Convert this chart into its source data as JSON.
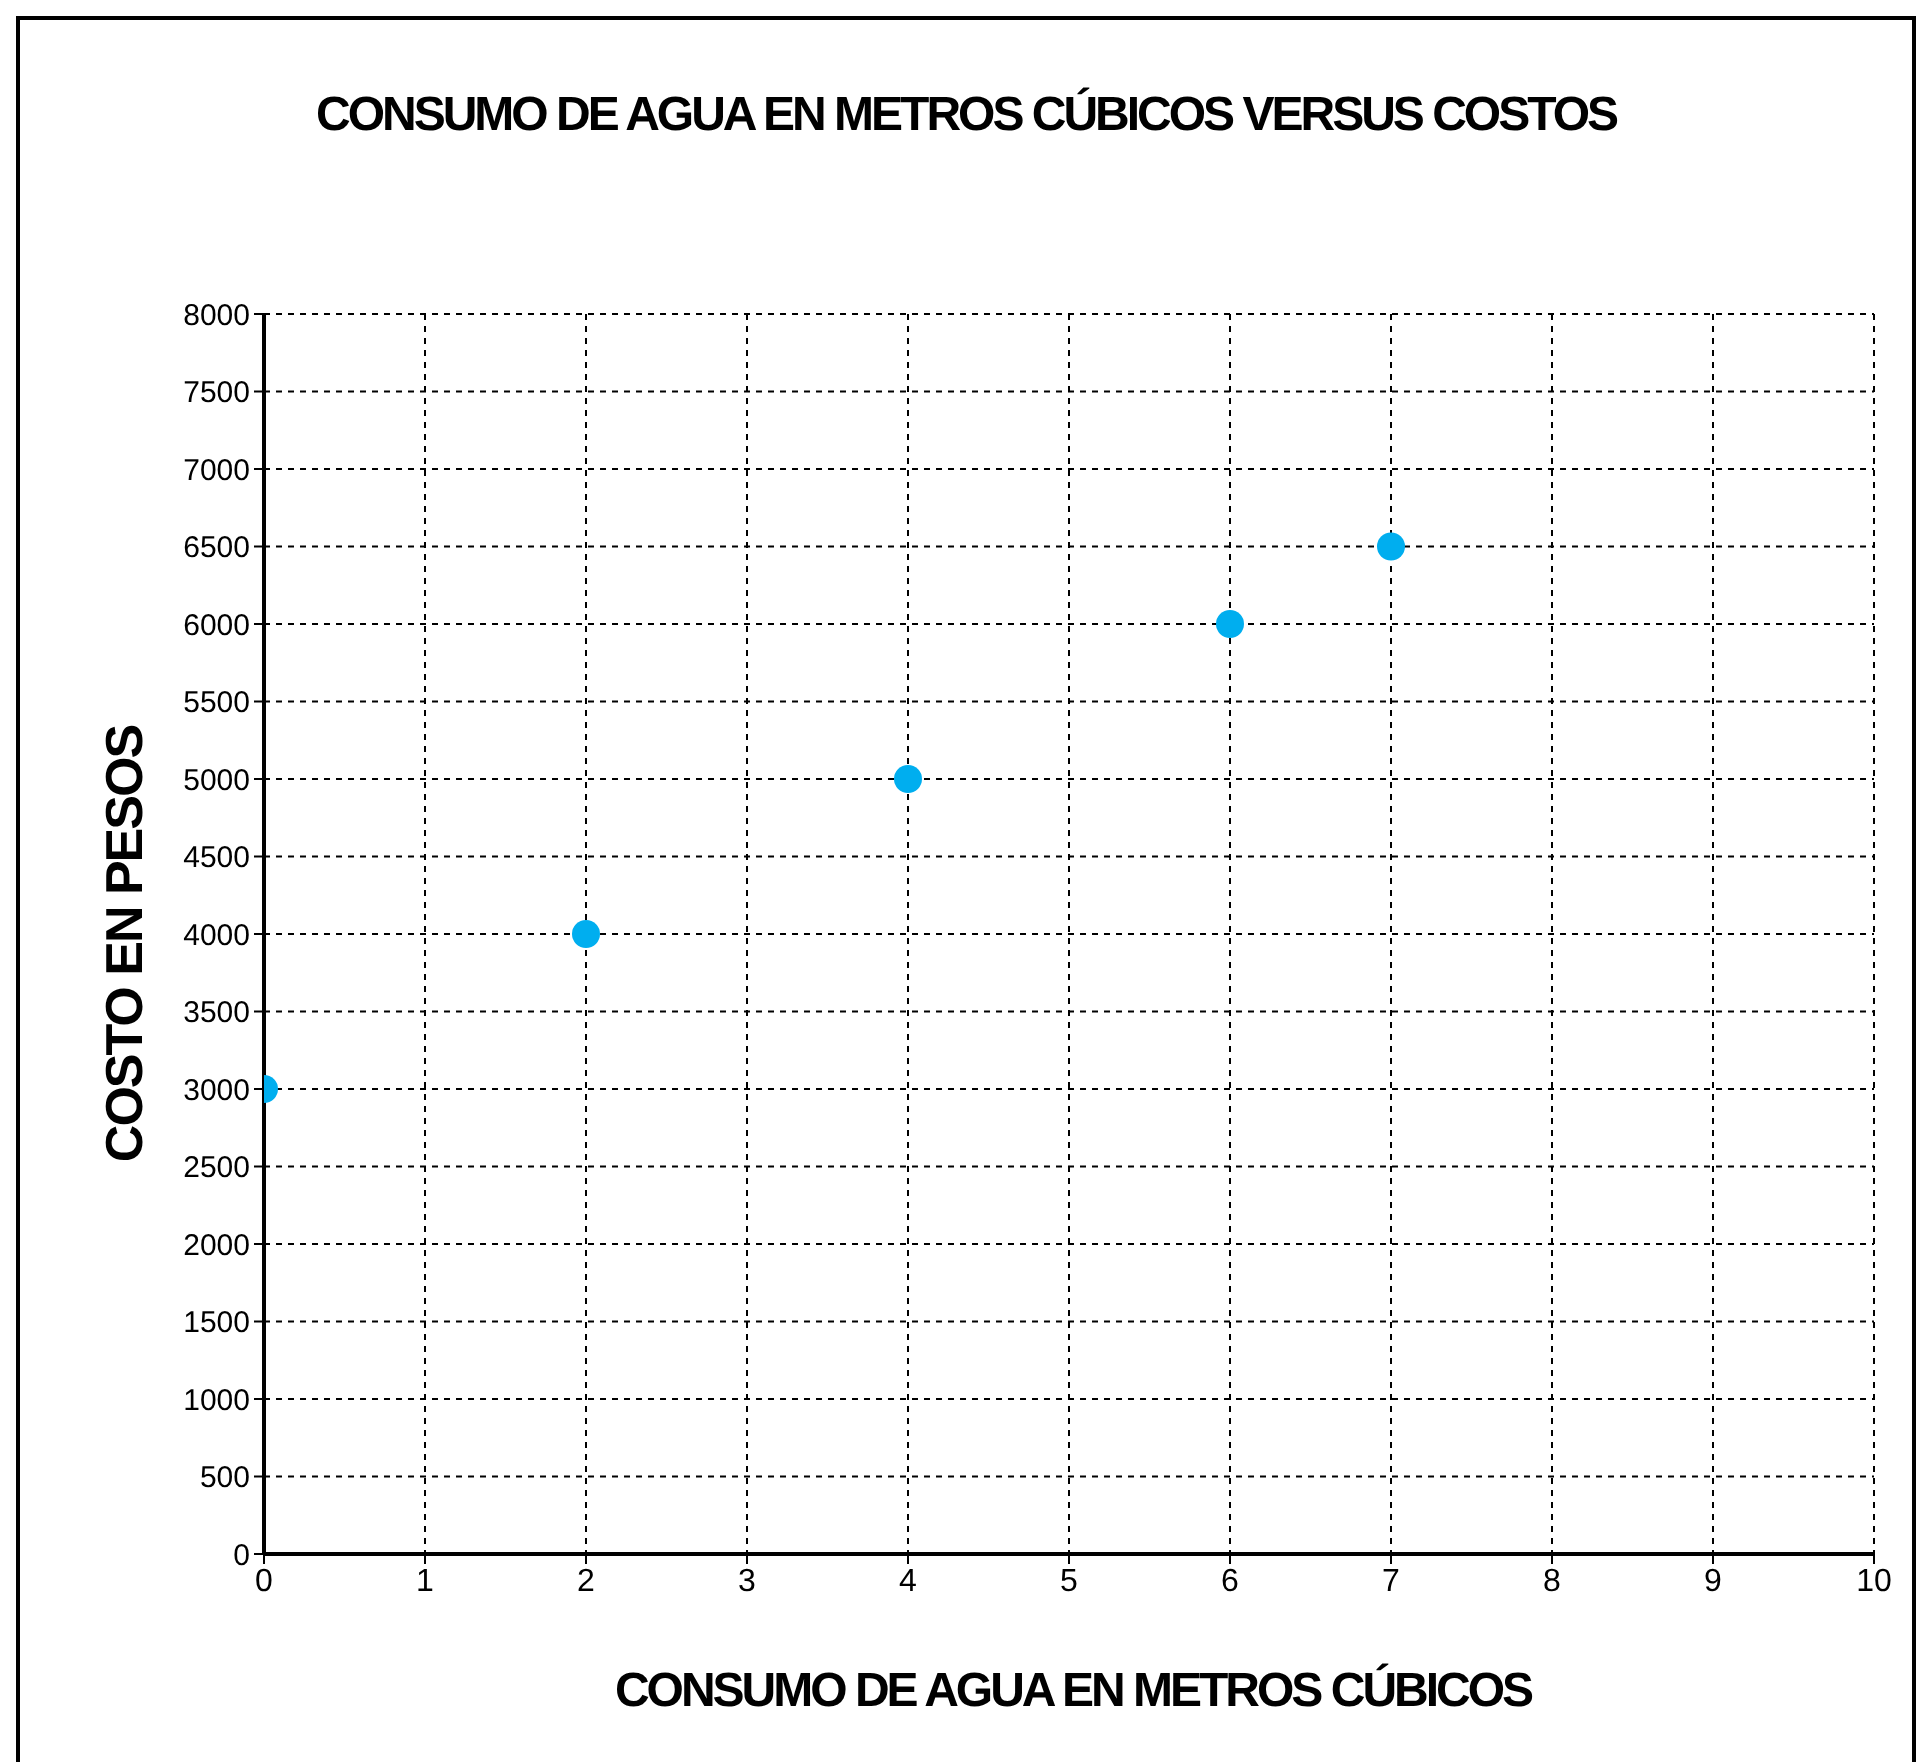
{
  "chart_data": {
    "type": "scatter",
    "title": "CONSUMO DE AGUA EN METROS CÚBICOS VERSUS COSTOS",
    "xlabel": "CONSUMO DE AGUA EN METROS CÚBICOS",
    "ylabel": "COSTO EN PESOS",
    "x": [
      0,
      2,
      4,
      6,
      7
    ],
    "series": [
      {
        "color": "#00aeef",
        "values": [
          3000,
          4000,
          5000,
          6000,
          6500
        ]
      }
    ],
    "xlim": [
      0,
      10
    ],
    "xticks": [
      0,
      1,
      2,
      3,
      4,
      5,
      6,
      7,
      8,
      9,
      10
    ],
    "ylim": [
      0,
      8000
    ],
    "yticks": [
      0,
      500,
      1000,
      1500,
      2000,
      2500,
      3000,
      3500,
      4000,
      4500,
      5000,
      5500,
      6000,
      6500,
      7000,
      7500,
      8000
    ],
    "grid": true,
    "marker": "circle",
    "legend": false
  }
}
